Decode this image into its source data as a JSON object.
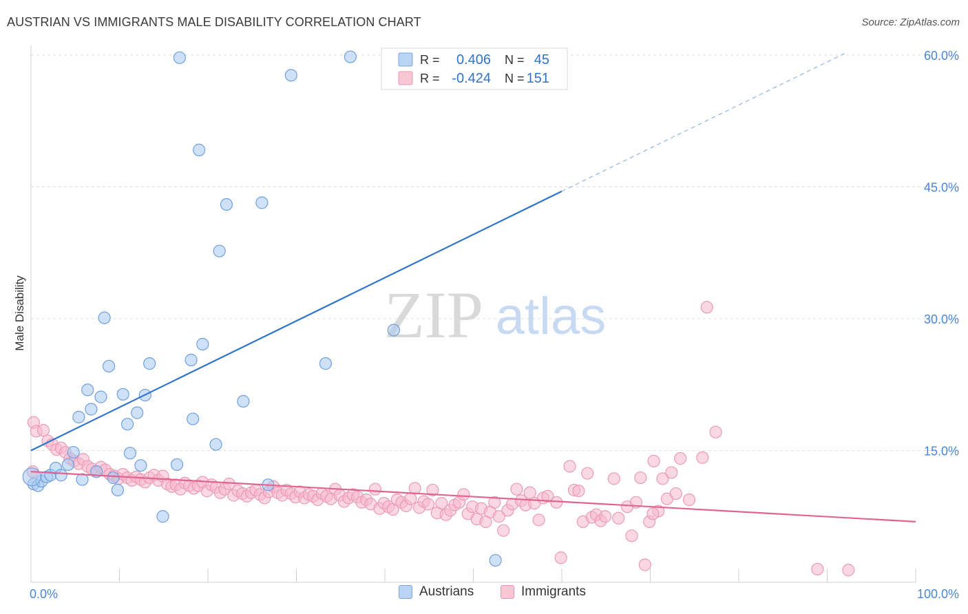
{
  "header": {
    "title": "AUSTRIAN VS IMMIGRANTS MALE DISABILITY CORRELATION CHART",
    "source": "Source: ZipAtlas.com"
  },
  "watermark": {
    "zip": "ZIP",
    "atlas": "atlas"
  },
  "chart_data": {
    "type": "scatter",
    "title": "AUSTRIAN VS IMMIGRANTS MALE DISABILITY CORRELATION CHART",
    "ylabel": "Male Disability",
    "xlabel": "",
    "xlim": [
      0,
      100
    ],
    "ylim": [
      0,
      60
    ],
    "x_tick_labels": [
      "0.0%",
      "100.0%"
    ],
    "y_tick_labels": [
      "15.0%",
      "30.0%",
      "45.0%",
      "60.0%"
    ],
    "y_ticks": [
      15,
      30,
      45,
      60
    ],
    "grid": true,
    "legend_position": "top-center",
    "colors": {
      "austrians_fill": "#a8c8f0",
      "austrians_line": "#2f74c9",
      "immigrants_fill": "#f5b8cc",
      "immigrants_line": "#e0648f",
      "axis_text": "#4a86d4"
    },
    "stats": [
      {
        "r_label": "R =",
        "r_value": "0.406",
        "n_label": "N =",
        "n_value": "45"
      },
      {
        "r_label": "R =",
        "r_value": "-0.424",
        "n_label": "N =",
        "n_value": "151"
      }
    ],
    "series": [
      {
        "name": "Austrians",
        "trend": {
          "x0": 0,
          "y0": 15.0,
          "x1": 60,
          "y1": 44.5,
          "dash_to_x": 92,
          "dash_to_y": 60.2
        },
        "points": [
          [
            0.3,
            11.2
          ],
          [
            0.8,
            11.0
          ],
          [
            1.2,
            11.5
          ],
          [
            1.8,
            12.0
          ],
          [
            2.2,
            12.2
          ],
          [
            2.8,
            13.0
          ],
          [
            3.4,
            12.2
          ],
          [
            4.2,
            13.4
          ],
          [
            4.8,
            14.8
          ],
          [
            5.4,
            18.8
          ],
          [
            5.8,
            11.7
          ],
          [
            6.4,
            21.9
          ],
          [
            6.8,
            19.7
          ],
          [
            7.4,
            12.6
          ],
          [
            7.9,
            21.1
          ],
          [
            8.3,
            30.1
          ],
          [
            8.8,
            24.6
          ],
          [
            9.3,
            11.9
          ],
          [
            9.8,
            10.5
          ],
          [
            10.4,
            21.4
          ],
          [
            10.9,
            18.0
          ],
          [
            11.2,
            14.7
          ],
          [
            12.0,
            19.3
          ],
          [
            12.4,
            13.3
          ],
          [
            12.9,
            21.3
          ],
          [
            13.4,
            24.9
          ],
          [
            14.9,
            7.5
          ],
          [
            16.5,
            13.4
          ],
          [
            16.8,
            59.7
          ],
          [
            18.1,
            25.3
          ],
          [
            18.3,
            18.6
          ],
          [
            19.0,
            49.2
          ],
          [
            19.4,
            27.1
          ],
          [
            20.9,
            15.7
          ],
          [
            21.3,
            37.7
          ],
          [
            22.1,
            43.0
          ],
          [
            24.0,
            20.6
          ],
          [
            26.1,
            43.2
          ],
          [
            26.8,
            11.1
          ],
          [
            29.4,
            57.7
          ],
          [
            33.3,
            24.9
          ],
          [
            36.1,
            59.8
          ],
          [
            41.0,
            28.7
          ],
          [
            52.5,
            2.5
          ],
          [
            0.1,
            12.0
          ]
        ]
      },
      {
        "name": "Immigrants",
        "trend": {
          "x0": 0,
          "y0": 12.6,
          "x1": 100,
          "y1": 6.9
        },
        "points": [
          [
            0.3,
            18.2
          ],
          [
            0.6,
            17.2
          ],
          [
            1.4,
            17.3
          ],
          [
            1.9,
            16.1
          ],
          [
            2.4,
            15.7
          ],
          [
            2.9,
            15.1
          ],
          [
            3.4,
            15.3
          ],
          [
            3.9,
            14.8
          ],
          [
            4.4,
            14.1
          ],
          [
            4.9,
            13.8
          ],
          [
            5.4,
            13.5
          ],
          [
            5.9,
            14.0
          ],
          [
            6.4,
            13.2
          ],
          [
            6.9,
            12.9
          ],
          [
            7.4,
            12.6
          ],
          [
            7.9,
            13.1
          ],
          [
            8.4,
            12.8
          ],
          [
            8.9,
            12.3
          ],
          [
            9.4,
            12.1
          ],
          [
            9.9,
            11.8
          ],
          [
            10.4,
            12.3
          ],
          [
            10.9,
            11.9
          ],
          [
            11.4,
            11.6
          ],
          [
            11.9,
            12.0
          ],
          [
            12.4,
            11.7
          ],
          [
            12.9,
            11.4
          ],
          [
            13.4,
            11.9
          ],
          [
            13.9,
            12.2
          ],
          [
            14.4,
            11.6
          ],
          [
            14.9,
            12.1
          ],
          [
            15.4,
            11.2
          ],
          [
            15.9,
            10.9
          ],
          [
            16.4,
            11.1
          ],
          [
            16.9,
            10.6
          ],
          [
            17.4,
            11.3
          ],
          [
            17.9,
            11.0
          ],
          [
            18.4,
            10.7
          ],
          [
            18.9,
            11.0
          ],
          [
            19.4,
            11.4
          ],
          [
            19.9,
            10.4
          ],
          [
            20.4,
            11.1
          ],
          [
            20.9,
            10.8
          ],
          [
            21.4,
            10.2
          ],
          [
            21.9,
            10.6
          ],
          [
            22.4,
            11.2
          ],
          [
            22.9,
            9.9
          ],
          [
            23.4,
            10.4
          ],
          [
            23.9,
            10.1
          ],
          [
            24.4,
            9.8
          ],
          [
            24.9,
            10.2
          ],
          [
            25.4,
            10.5
          ],
          [
            25.9,
            10.0
          ],
          [
            26.4,
            9.6
          ],
          [
            26.9,
            10.3
          ],
          [
            27.4,
            10.9
          ],
          [
            27.9,
            10.2
          ],
          [
            28.4,
            9.9
          ],
          [
            28.9,
            10.5
          ],
          [
            29.4,
            10.1
          ],
          [
            29.9,
            9.7
          ],
          [
            30.4,
            10.3
          ],
          [
            30.9,
            9.6
          ],
          [
            31.4,
            10.0
          ],
          [
            31.9,
            9.8
          ],
          [
            32.4,
            9.4
          ],
          [
            32.9,
            10.1
          ],
          [
            33.4,
            9.8
          ],
          [
            33.9,
            9.5
          ],
          [
            34.4,
            10.6
          ],
          [
            34.9,
            9.9
          ],
          [
            35.4,
            9.2
          ],
          [
            35.9,
            9.6
          ],
          [
            36.4,
            10.0
          ],
          [
            36.9,
            9.7
          ],
          [
            37.4,
            9.1
          ],
          [
            37.9,
            9.4
          ],
          [
            38.4,
            8.9
          ],
          [
            38.9,
            10.6
          ],
          [
            39.4,
            8.4
          ],
          [
            39.9,
            9.0
          ],
          [
            40.4,
            8.6
          ],
          [
            40.9,
            8.3
          ],
          [
            41.4,
            9.4
          ],
          [
            41.9,
            9.1
          ],
          [
            42.4,
            8.7
          ],
          [
            42.9,
            9.5
          ],
          [
            43.4,
            10.7
          ],
          [
            43.9,
            8.5
          ],
          [
            44.4,
            9.2
          ],
          [
            44.9,
            8.9
          ],
          [
            45.4,
            10.5
          ],
          [
            45.9,
            7.9
          ],
          [
            46.4,
            9.0
          ],
          [
            46.9,
            7.7
          ],
          [
            47.4,
            8.2
          ],
          [
            47.9,
            8.8
          ],
          [
            48.4,
            9.1
          ],
          [
            48.9,
            10.0
          ],
          [
            49.4,
            7.8
          ],
          [
            49.9,
            8.6
          ],
          [
            50.4,
            7.2
          ],
          [
            50.9,
            8.4
          ],
          [
            51.4,
            6.9
          ],
          [
            51.9,
            8.0
          ],
          [
            52.4,
            9.1
          ],
          [
            52.9,
            7.5
          ],
          [
            53.4,
            5.9
          ],
          [
            53.9,
            8.2
          ],
          [
            54.4,
            8.9
          ],
          [
            54.9,
            10.6
          ],
          [
            55.4,
            9.3
          ],
          [
            55.9,
            8.8
          ],
          [
            56.4,
            10.2
          ],
          [
            56.9,
            9.0
          ],
          [
            57.4,
            7.1
          ],
          [
            57.9,
            9.6
          ],
          [
            58.4,
            9.8
          ],
          [
            59.4,
            9.1
          ],
          [
            59.9,
            2.8
          ],
          [
            60.9,
            13.2
          ],
          [
            61.4,
            10.5
          ],
          [
            61.9,
            10.4
          ],
          [
            62.4,
            6.9
          ],
          [
            62.9,
            12.4
          ],
          [
            63.4,
            7.4
          ],
          [
            63.9,
            7.7
          ],
          [
            64.4,
            7.0
          ],
          [
            64.9,
            7.5
          ],
          [
            65.9,
            11.8
          ],
          [
            66.4,
            7.3
          ],
          [
            67.4,
            8.6
          ],
          [
            67.9,
            5.3
          ],
          [
            68.4,
            9.1
          ],
          [
            68.9,
            11.9
          ],
          [
            69.9,
            6.9
          ],
          [
            70.4,
            13.8
          ],
          [
            70.9,
            8.1
          ],
          [
            71.4,
            11.8
          ],
          [
            71.9,
            9.5
          ],
          [
            72.4,
            12.5
          ],
          [
            73.4,
            14.1
          ],
          [
            74.4,
            9.4
          ],
          [
            75.9,
            14.2
          ],
          [
            76.4,
            31.3
          ],
          [
            77.4,
            17.1
          ],
          [
            70.3,
            7.8
          ],
          [
            72.9,
            10.1
          ],
          [
            69.4,
            2.0
          ],
          [
            88.9,
            1.5
          ],
          [
            92.4,
            1.4
          ],
          [
            0.2,
            12.6
          ]
        ]
      }
    ]
  },
  "legend": {
    "items": [
      {
        "label": "Austrians"
      },
      {
        "label": "Immigrants"
      }
    ]
  }
}
